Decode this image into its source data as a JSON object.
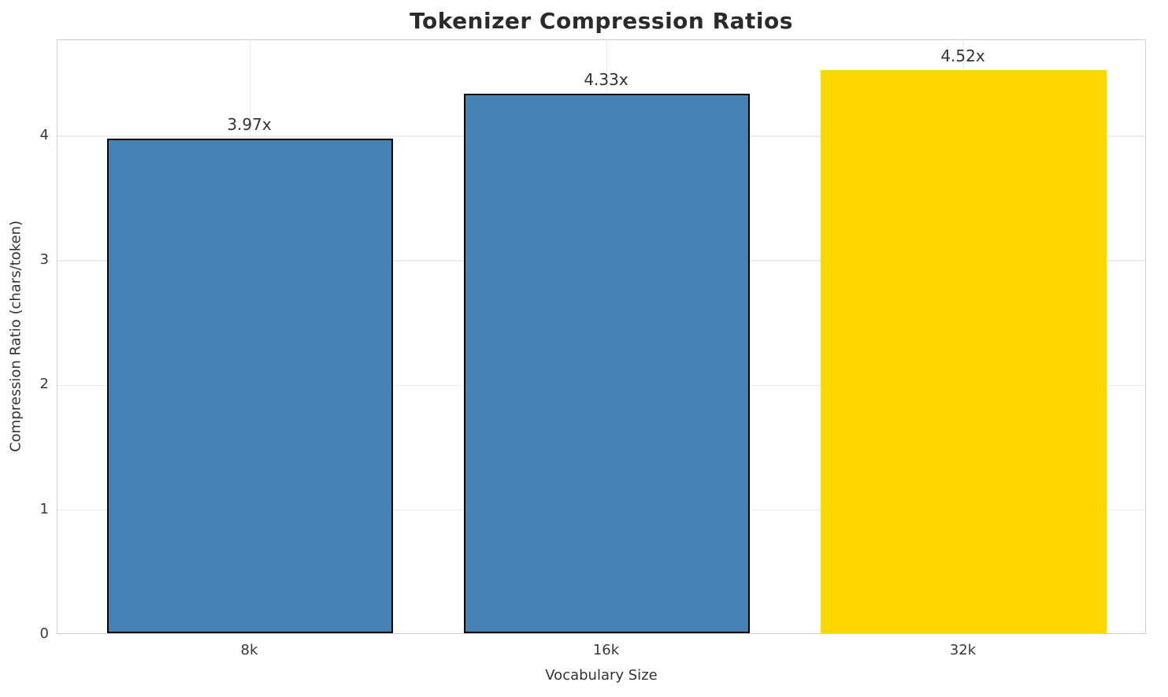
{
  "title": "Tokenizer Compression Ratios",
  "chart_data": {
    "type": "bar",
    "title": "Tokenizer Compression Ratios",
    "xlabel": "Vocabulary Size",
    "ylabel": "Compression Ratio (chars/token)",
    "categories": [
      "8k",
      "16k",
      "32k"
    ],
    "values": [
      3.97,
      4.33,
      4.52
    ],
    "bar_labels": [
      "3.97x",
      "4.33x",
      "4.52x"
    ],
    "bar_colors": [
      "#4682B4",
      "#4682B4",
      "#FFD700"
    ],
    "bar_edge_colors": [
      "#000000",
      "#000000",
      "none"
    ],
    "yticks": [
      "0",
      "1",
      "2",
      "3",
      "4"
    ],
    "ytick_values": [
      0,
      1,
      2,
      3,
      4
    ],
    "ylim": [
      0,
      4.77
    ],
    "grid": true,
    "legend": "none",
    "colors": {
      "background": "#ffffff",
      "grid": "#ececec",
      "spine": "#cfcfcf",
      "title_text": "#2b2b2b",
      "tick_text": "#3a3a3a",
      "highlight_bar": "#FFD700",
      "default_bar": "#4682B4"
    }
  }
}
